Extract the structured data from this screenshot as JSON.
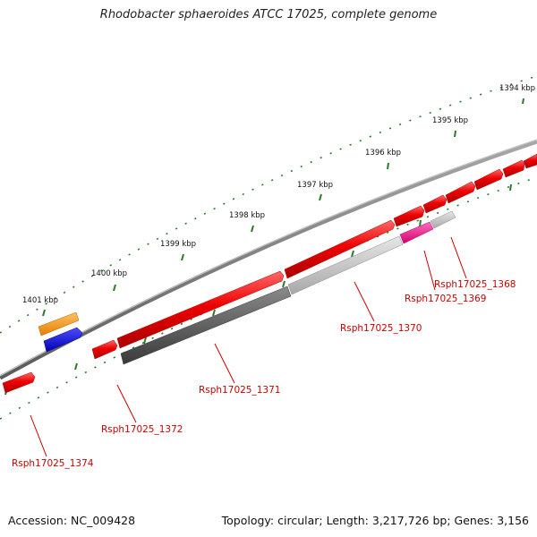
{
  "title": "Rhodobacter sphaeroides ATCC 17025, complete genome",
  "footer": {
    "accession": "Accession: NC_009428",
    "summary": "Topology: circular; Length: 3,217,726 bp; Genes: 3,156"
  },
  "scale_labels": [
    "1394 kbp",
    "1395 kbp",
    "1396 kbp",
    "1397 kbp",
    "1398 kbp",
    "1399 kbp",
    "1400 kbp",
    "1401 kbp"
  ],
  "gene_labels": [
    "Rsph17025_1368",
    "Rsph17025_1369",
    "Rsph17025_1370",
    "Rsph17025_1371",
    "Rsph17025_1372",
    "Rsph17025_1374"
  ],
  "colors": {
    "backbone": "#7a7a7a",
    "cds_red": "#ee0000",
    "gray_light": "#bdbdbd",
    "gray_dark": "#555555",
    "magenta": "#ff1493",
    "orange": "#ff9900",
    "blue": "#0000ee",
    "tick_green": "#2a7a2a",
    "label_red": "#cc0000"
  }
}
